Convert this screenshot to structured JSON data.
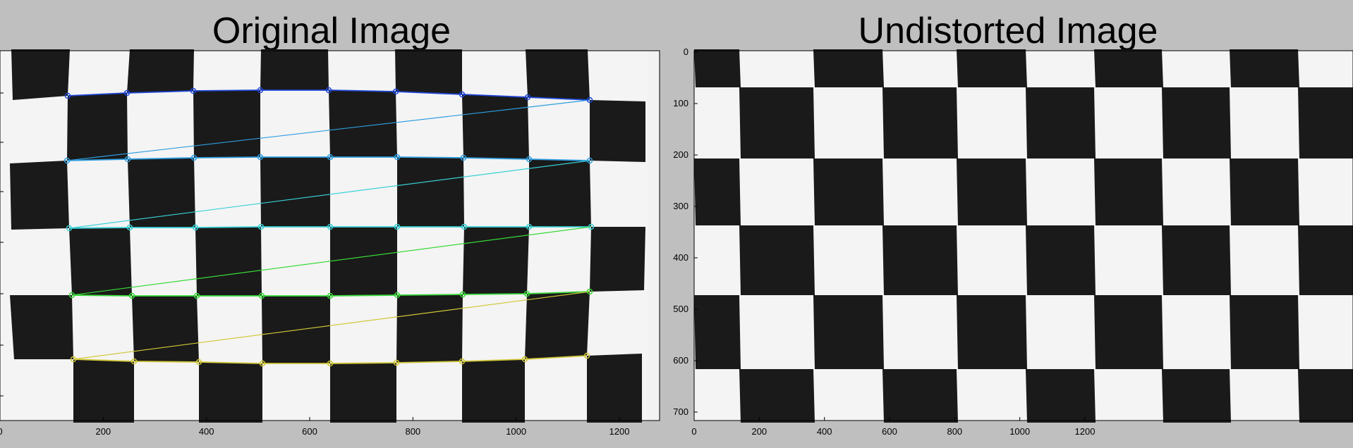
{
  "panels": [
    {
      "title": "Original Image",
      "x_ticks": [
        "0",
        "200",
        "400",
        "600",
        "800",
        "1000",
        "1200"
      ],
      "y_ticks": [],
      "grid_type": "distorted-checkerboard",
      "corner_rows": 5,
      "corner_cols": 9,
      "corner_line_colors": [
        "#1e46d8",
        "#2e9de0",
        "#38d0d6",
        "#38d838",
        "#d0c838"
      ]
    },
    {
      "title": "Undistorted Image",
      "x_ticks": [
        "0",
        "200",
        "400",
        "600",
        "800",
        "1000",
        "1200"
      ],
      "y_ticks": [
        "0",
        "100",
        "200",
        "300",
        "400",
        "500",
        "600",
        "700"
      ],
      "grid_type": "undistorted-checkerboard"
    }
  ]
}
